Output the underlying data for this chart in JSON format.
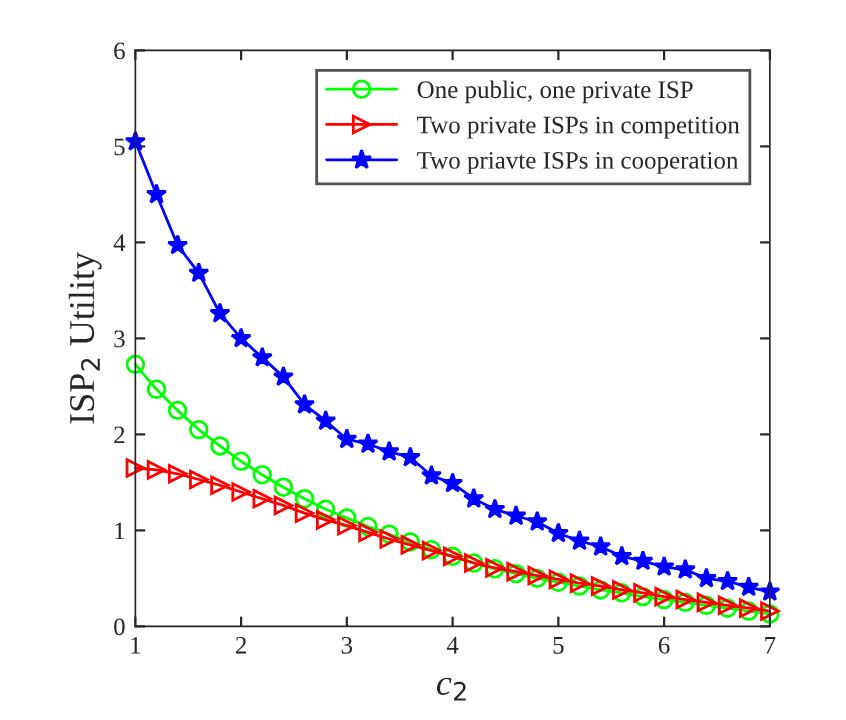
{
  "chart_data": {
    "type": "line",
    "xlabel": "c$_{2}$",
    "ylabel": "ISP$_{2}$ Utility",
    "x": [
      1.0,
      1.2,
      1.4,
      1.6,
      1.8,
      2.0,
      2.2,
      2.4,
      2.6,
      2.8,
      3.0,
      3.2,
      3.4,
      3.6,
      3.8,
      4.0,
      4.2,
      4.4,
      4.6,
      4.8,
      5.0,
      5.2,
      5.4,
      5.6,
      5.8,
      6.0,
      6.2,
      6.4,
      6.6,
      6.8,
      7.0
    ],
    "series": [
      {
        "name": "One public, one private ISP",
        "color": "#00ff00",
        "marker": "circle",
        "values": [
          2.73,
          2.47,
          2.25,
          2.05,
          1.88,
          1.72,
          1.58,
          1.45,
          1.33,
          1.22,
          1.13,
          1.04,
          0.96,
          0.88,
          0.8,
          0.73,
          0.66,
          0.6,
          0.55,
          0.5,
          0.46,
          0.42,
          0.38,
          0.35,
          0.31,
          0.28,
          0.25,
          0.22,
          0.19,
          0.16,
          0.13
        ]
      },
      {
        "name": "Two private ISPs in competition",
        "color": "#ff0000",
        "marker": "triangle",
        "values": [
          1.65,
          1.63,
          1.59,
          1.53,
          1.47,
          1.4,
          1.33,
          1.26,
          1.18,
          1.11,
          1.05,
          0.98,
          0.91,
          0.85,
          0.79,
          0.73,
          0.66,
          0.61,
          0.57,
          0.53,
          0.49,
          0.45,
          0.42,
          0.38,
          0.35,
          0.31,
          0.28,
          0.25,
          0.22,
          0.19,
          0.16
        ]
      },
      {
        "name": "Two priavte ISPs in cooperation",
        "color": "#0000ff",
        "marker": "star",
        "values": [
          5.05,
          4.5,
          3.97,
          3.68,
          3.26,
          3.0,
          2.8,
          2.6,
          2.31,
          2.14,
          1.95,
          1.9,
          1.82,
          1.76,
          1.57,
          1.49,
          1.33,
          1.22,
          1.15,
          1.09,
          0.97,
          0.89,
          0.83,
          0.73,
          0.68,
          0.62,
          0.59,
          0.5,
          0.47,
          0.41,
          0.36
        ]
      }
    ],
    "xlim": [
      1,
      7
    ],
    "xticks": [
      1,
      2,
      3,
      4,
      5,
      6,
      7
    ],
    "ylim": [
      0,
      6
    ],
    "yticks": [
      0,
      1,
      2,
      3,
      4,
      5,
      6
    ],
    "grid": false,
    "legend": "top right",
    "line_style": "solid"
  }
}
